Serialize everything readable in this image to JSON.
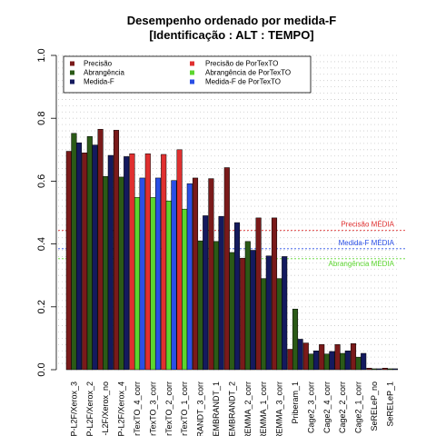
{
  "chart_data": {
    "type": "bar",
    "title": "Desempenho ordenado por medida-F",
    "subtitle": "[Identificação : ALT : TEMPO]",
    "xlabel": "",
    "ylabel": "",
    "ylim": [
      0,
      1
    ],
    "yticks": [
      "0.0",
      "0.2",
      "0.4",
      "0.6",
      "0.8",
      "1.0"
    ],
    "grid": "horizontal-dotted",
    "legend_position": "top",
    "categories": [
      "P-L2F/Xerox_3",
      "P-L2F/Xerox_2",
      "P-L2F/Xerox_no",
      "P-L2F/Xerox_4",
      "rTexTO_4_corr",
      "rTexTO_3_corr",
      "rTexTO_2_corr",
      "rTexTO_1_corr",
      "RANDT_3_corr",
      "EMBRANDT_1",
      "EMBRANDT_2",
      "REMMA_2_corr",
      "REMMA_1_corr",
      "REMMA_3_corr",
      "Priberam_1",
      "Cage2_3_corr",
      "Cage2_4_corr",
      "Cage2_2_corr",
      "Cage2_1_corr",
      "SeRELeP_no",
      "SeRELeP_1"
    ],
    "series": [
      {
        "name": "Precisão",
        "color": "#7a1a1a",
        "values": [
          0.695,
          0.69,
          0.765,
          0.762,
          0.687,
          0.687,
          0.685,
          0.7,
          0.61,
          0.608,
          0.643,
          0.355,
          0.483,
          0.483,
          0.065,
          0.085,
          0.08,
          0.08,
          0.083,
          0.005,
          0.005
        ]
      },
      {
        "name": "Abrangência",
        "color": "#2b5a17",
        "values": [
          0.752,
          0.742,
          0.615,
          0.613,
          0.548,
          0.548,
          0.537,
          0.511,
          0.41,
          0.408,
          0.373,
          0.408,
          0.29,
          0.29,
          0.193,
          0.05,
          0.05,
          0.052,
          0.04,
          0.003,
          0.003
        ]
      },
      {
        "name": "Medida-F",
        "color": "#141a5e",
        "values": [
          0.722,
          0.715,
          0.682,
          0.678,
          0.61,
          0.61,
          0.602,
          0.592,
          0.49,
          0.488,
          0.468,
          0.38,
          0.362,
          0.36,
          0.097,
          0.06,
          0.058,
          0.06,
          0.052,
          0.003,
          0.003
        ]
      }
    ],
    "highlight_series": [
      {
        "name": "Precisão de PorTexTO",
        "color": "#e03030"
      },
      {
        "name": "Abrangência de PorTexTO",
        "color": "#5cd62f"
      },
      {
        "name": "Medida-F de PorTexTO",
        "color": "#2a4fe6"
      }
    ],
    "highlight_categories": [
      4,
      5,
      6,
      7
    ],
    "reference_lines": [
      {
        "label": "Precisão MÉDIA",
        "value": 0.443,
        "color": "#e03030"
      },
      {
        "label": "Medida-F MÉDIA",
        "value": 0.385,
        "color": "#2a4fe6"
      },
      {
        "label": "Abrangência MÉDIA",
        "value": 0.353,
        "color": "#5cd62f"
      }
    ]
  }
}
